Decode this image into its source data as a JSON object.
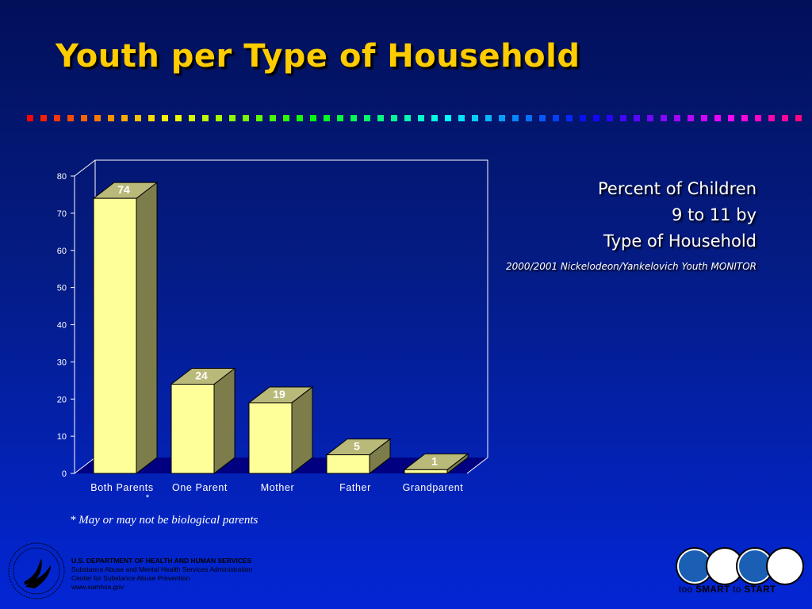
{
  "slide": {
    "title": "Youth per Type of Household",
    "side_lines": [
      "Percent of Children",
      "9 to 11 by",
      "Type of Household"
    ],
    "source": "2000/2001 Nickelodeon/Yankelovich Youth MONITOR",
    "footnote": "* May or may not be biological parents",
    "asterisk": "*"
  },
  "chart_data": {
    "type": "bar",
    "categories": [
      "Both Parents",
      "One Parent",
      "Mother",
      "Father",
      "Grandparent"
    ],
    "values": [
      74,
      24,
      19,
      5,
      1
    ],
    "data_labels": [
      "74",
      "24",
      "19",
      "5",
      "1"
    ],
    "yticks": [
      "0",
      "10",
      "20",
      "30",
      "40",
      "50",
      "60",
      "70",
      "80"
    ],
    "ylim": [
      0,
      80
    ],
    "style": "3d",
    "grid": false,
    "colors": {
      "front": "#ffff99",
      "side": "#7d7d4c",
      "top": "#b9b97a",
      "floor": "#000080"
    }
  },
  "footer": {
    "hhs_lines": [
      "U.S. DEPARTMENT OF HEALTH AND HUMAN SERVICES",
      "Substance Abuse and Mental Health Services Administration",
      "Center for Substance Abuse Prevention",
      "www.samhsa.gov"
    ],
    "campaign": {
      "too": "too",
      "smart": "SMART",
      "to": "to",
      "start": "START"
    },
    "campaign_icons": [
      "face-icon",
      "face-icon",
      "face-icon",
      "face-icon"
    ],
    "seal_icon": "hhs-eagle-seal-icon"
  }
}
